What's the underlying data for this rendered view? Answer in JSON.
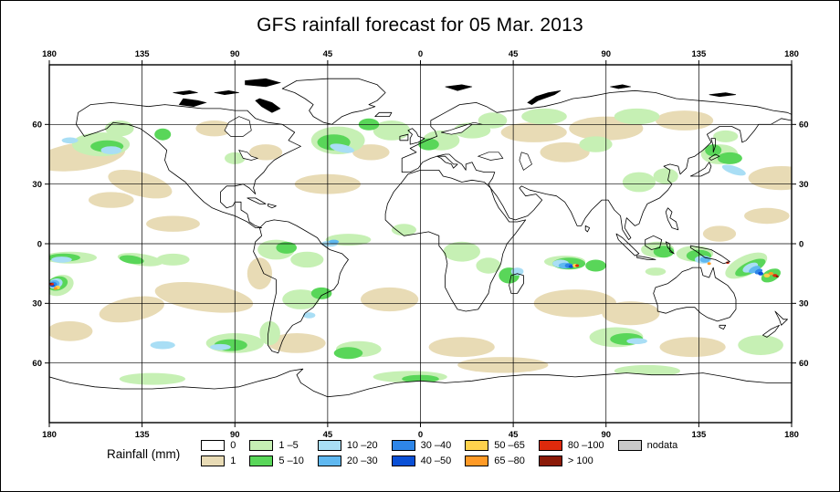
{
  "title": "GFS rainfall forecast for 05 Mar. 2013",
  "axes": {
    "lon_ticks": [
      "180",
      "135",
      "90",
      "45",
      "0",
      "45",
      "90",
      "135",
      "180"
    ],
    "lat_ticks": [
      "60",
      "30",
      "0",
      "30",
      "60"
    ]
  },
  "legend": {
    "title": "Rainfall (mm)",
    "items": [
      {
        "label": "0",
        "color": "#FFFFFF"
      },
      {
        "label": "1",
        "color": "#E8DBB5"
      },
      {
        "label": "1 –5",
        "color": "#C6F0B4"
      },
      {
        "label": "5 –10",
        "color": "#59D659"
      },
      {
        "label": "10 –20",
        "color": "#A9DEF5"
      },
      {
        "label": "20 –30",
        "color": "#5FB8F0"
      },
      {
        "label": "30 –40",
        "color": "#2E86E8"
      },
      {
        "label": "40 –50",
        "color": "#0A50D6"
      },
      {
        "label": "50 –65",
        "color": "#FFD24D"
      },
      {
        "label": "65 –80",
        "color": "#FF9A26"
      },
      {
        "label": "80 –100",
        "color": "#DE2A0C"
      },
      {
        "label": "> 100",
        "color": "#8B1A08"
      },
      {
        "label": "nodata",
        "color": "#CACACA"
      }
    ]
  }
}
